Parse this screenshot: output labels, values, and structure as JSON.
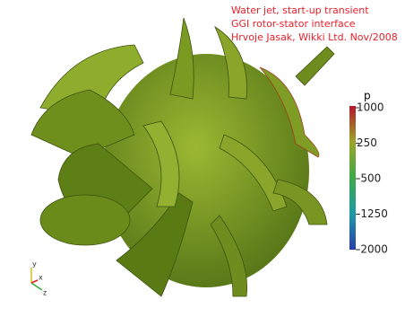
{
  "annotation": {
    "lines": [
      "Water jet, start-up transient",
      "GGI rotor-stator interface",
      "Hrvoje Jasak, Wikki Ltd. Nov/2008"
    ]
  },
  "colorbar": {
    "title": "p",
    "ticks": [
      1000,
      250,
      -500,
      -1250,
      -2000
    ]
  },
  "axes": {
    "x": "x",
    "y": "y",
    "z": "z"
  }
}
